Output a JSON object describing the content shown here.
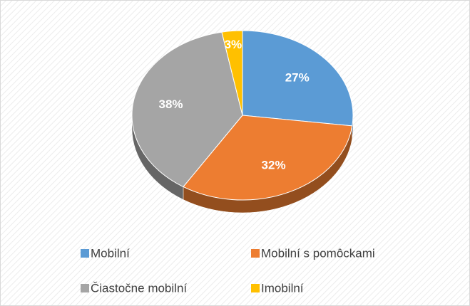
{
  "chart_data": {
    "type": "pie",
    "categories": [
      "Mobilní",
      "Mobilní s pomôckami",
      "Čiastočne mobilní",
      "Imobilní"
    ],
    "values": [
      27,
      32,
      38,
      3
    ],
    "value_labels": [
      "27%",
      "32%",
      "38%",
      "3%"
    ],
    "colors": [
      "#5b9bd5",
      "#ed7d31",
      "#a5a5a5",
      "#ffc000"
    ],
    "legend": "bottom"
  }
}
